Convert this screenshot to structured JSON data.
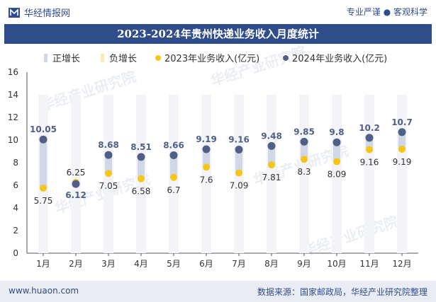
{
  "header": {
    "brand": "华经情报网",
    "tagline": "专业严谨 ● 客观科学"
  },
  "chart_data": {
    "type": "line",
    "title": "2023-2024年贵州快递业务收入月度统计",
    "legend": [
      "正增长",
      "负增长",
      "2023年业务收入(亿元)",
      "2024年业务收入(亿元)"
    ],
    "categories": [
      "1月",
      "2月",
      "3月",
      "4月",
      "5月",
      "6月",
      "7月",
      "8月",
      "9月",
      "10月",
      "11月",
      "12月"
    ],
    "series": [
      {
        "name": "2023年业务收入(亿元)",
        "values": [
          5.75,
          6.25,
          7.05,
          6.58,
          6.7,
          7.6,
          7.09,
          7.81,
          8.3,
          8.09,
          9.16,
          9.19
        ],
        "color": "#f5c518"
      },
      {
        "name": "2024年业务收入(亿元)",
        "values": [
          10.05,
          6.12,
          8.68,
          8.51,
          8.66,
          9.19,
          9.16,
          9.48,
          9.85,
          9.8,
          10.2,
          10.7
        ],
        "color": "#4f5f86"
      }
    ],
    "ylim": [
      0,
      16
    ],
    "yticks": [
      0,
      2,
      4,
      6,
      8,
      10,
      12,
      14,
      16
    ],
    "colors": {
      "positive": "#d0d7e6",
      "negative": "#f7ecb8",
      "label2024": "#4f5f86",
      "label2023": "#333333",
      "axis": "#333333"
    }
  },
  "footer": {
    "url": "www.huaon.com",
    "source": "数据来源：国家邮政局，华经产业研究院整理"
  },
  "watermark": "华经产业研究院"
}
